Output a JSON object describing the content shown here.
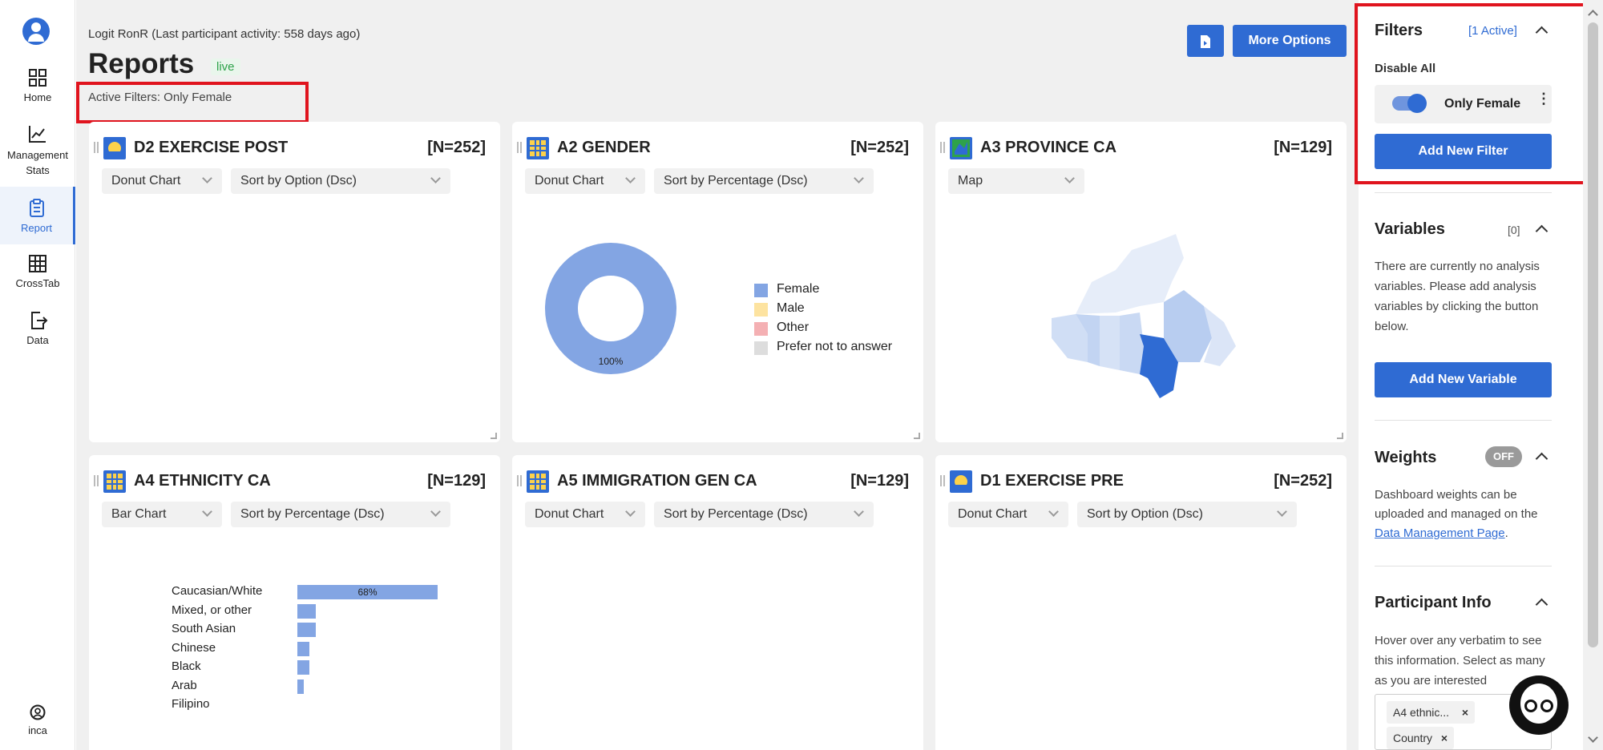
{
  "nav": {
    "items": [
      {
        "label": "Home",
        "icon": "grid-icon"
      },
      {
        "label": "Management Stats",
        "line1": "Management",
        "line2": "Stats",
        "icon": "line-chart-icon"
      },
      {
        "label": "Report",
        "icon": "clipboard-icon"
      },
      {
        "label": "CrossTab",
        "icon": "table-icon"
      },
      {
        "label": "Data",
        "icon": "export-file-icon"
      }
    ],
    "user": {
      "label": "inca",
      "icon": "user-circle-icon"
    }
  },
  "header": {
    "subtitle": "Logit RonR (Last participant activity: 558 days ago)",
    "title": "Reports",
    "badge": "live",
    "active_filters": "Active Filters: Only Female",
    "more_options": "More Options",
    "pdf_icon": "pdf-export-icon"
  },
  "cards": [
    {
      "title": "D2 EXERCISE POST",
      "n": "[N=252]",
      "chart_type": "Donut Chart",
      "sort": "Sort by Option (Dsc)"
    },
    {
      "title": "A2 GENDER",
      "n": "[N=252]",
      "chart_type": "Donut Chart",
      "sort": "Sort by Percentage (Dsc)"
    },
    {
      "title": "A3 PROVINCE CA",
      "n": "[N=129]",
      "chart_type": "Map"
    },
    {
      "title": "A4 ETHNICITY CA",
      "n": "[N=129]",
      "chart_type": "Bar Chart",
      "sort": "Sort by Percentage (Dsc)"
    },
    {
      "title": "A5 IMMIGRATION GEN CA",
      "n": "[N=129]",
      "chart_type": "Donut Chart",
      "sort": "Sort by Percentage (Dsc)"
    },
    {
      "title": "D1 EXERCISE PRE",
      "n": "[N=252]",
      "chart_type": "Donut Chart",
      "sort": "Sort by Option (Dsc)"
    }
  ],
  "chart_data": [
    {
      "type": "pie",
      "title": "A2 GENDER",
      "categories": [
        "Female",
        "Male",
        "Other",
        "Prefer not to answer"
      ],
      "values": [
        100,
        0,
        0,
        0
      ],
      "colors": [
        "#83a5e3",
        "#fde3a0",
        "#f4b0b3",
        "#dddddd"
      ],
      "data_labels": [
        "100%"
      ]
    },
    {
      "type": "bar",
      "title": "A4 ETHNICITY CA",
      "categories": [
        "Caucasian/White",
        "Mixed, or other",
        "South Asian",
        "Chinese",
        "Black",
        "Arab",
        "Filipino"
      ],
      "values": [
        68,
        9,
        9,
        6,
        6,
        3,
        0
      ],
      "data_labels": [
        "68%"
      ],
      "color": "#83a5e3"
    }
  ],
  "panel": {
    "filters": {
      "title": "Filters",
      "count": "[1 Active]",
      "disable_all": "Disable All",
      "filter_name": "Only Female",
      "add_button": "Add New Filter"
    },
    "variables": {
      "title": "Variables",
      "count": "[0]",
      "text": "There are currently no analysis variables. Please add analysis variables by clicking the button below.",
      "add_button": "Add New Variable"
    },
    "weights": {
      "title": "Weights",
      "badge": "OFF",
      "text_before": "Dashboard weights can be uploaded and managed on the ",
      "link": "Data Management Page",
      "text_after": "."
    },
    "participant": {
      "title": "Participant Info",
      "text": "Hover over any verbatim to see this information. Select as many as you are interested",
      "tags": [
        "A4 ethnic...",
        "Country"
      ]
    }
  },
  "colors": {
    "accent": "#2f6bd3",
    "highlight": "#e0141e",
    "live": "#2ea24a"
  }
}
